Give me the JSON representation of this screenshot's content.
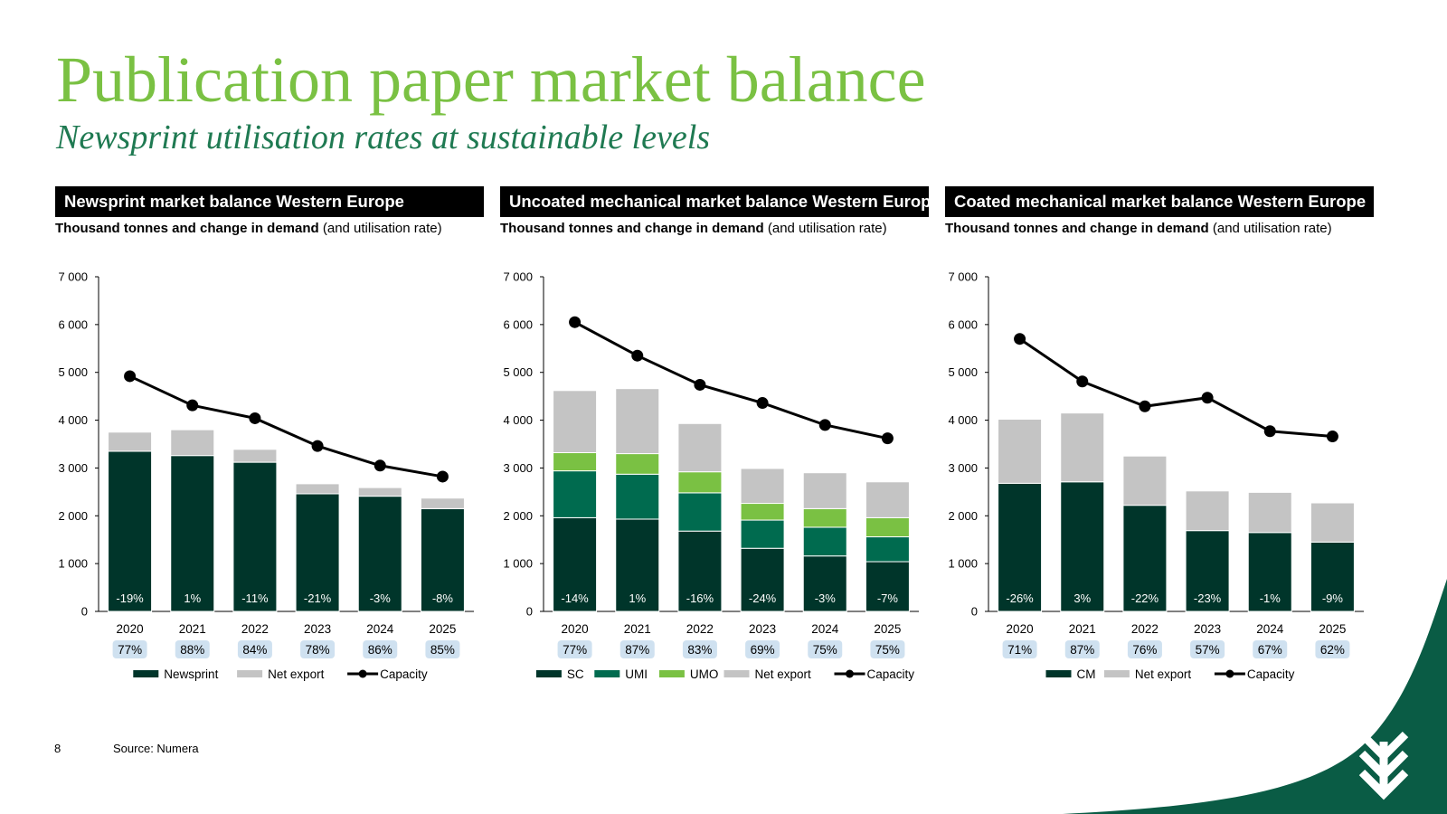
{
  "page": {
    "title": "Publication paper market balance",
    "subtitle": "Newsprint utilisation rates at sustainable levels",
    "page_number": "8",
    "source": "Source: Numera"
  },
  "colors": {
    "title": "#7ac143",
    "subtitle": "#1f7a52",
    "dark_green": "#00352a",
    "mid_green": "#006b4f",
    "light_green": "#7ac143",
    "grey": "#c4c4c4",
    "pill": "#cfe1f0",
    "brand_wave": "#0a5c45"
  },
  "chart_data": [
    {
      "type": "bar",
      "stacked": true,
      "title": "Newsprint market balance Western Europe",
      "subtitle_bold": "Thousand tonnes and change in demand",
      "subtitle_normal": "(and utilisation rate)",
      "categories": [
        "2020",
        "2021",
        "2022",
        "2023",
        "2024",
        "2025"
      ],
      "ylim": [
        0,
        7000
      ],
      "yticks": [
        0,
        1000,
        2000,
        3000,
        4000,
        5000,
        6000,
        7000
      ],
      "ytick_labels": [
        "0",
        "1 000",
        "2 000",
        "3 000",
        "4 000",
        "5 000",
        "6 000",
        "7 000"
      ],
      "series": [
        {
          "name": "Newsprint",
          "color": "#00352a",
          "values": [
            3350,
            3260,
            3120,
            2460,
            2410,
            2150
          ]
        },
        {
          "name": "Net export",
          "color": "#c4c4c4",
          "values": [
            400,
            540,
            270,
            210,
            180,
            220
          ]
        }
      ],
      "line": {
        "name": "Capacity",
        "values": [
          4920,
          4310,
          4040,
          3460,
          3050,
          2820
        ]
      },
      "bar_labels": [
        "-19%",
        "1%",
        "-11%",
        "-21%",
        "-3%",
        "-8%"
      ],
      "utilisation": [
        "77%",
        "88%",
        "84%",
        "78%",
        "86%",
        "85%"
      ],
      "legend": [
        "Newsprint",
        "Net export",
        "Capacity"
      ]
    },
    {
      "type": "bar",
      "stacked": true,
      "title": "Uncoated mechanical market balance Western Europe",
      "subtitle_bold": "Thousand tonnes and change in demand",
      "subtitle_normal": "(and utilisation rate)",
      "categories": [
        "2020",
        "2021",
        "2022",
        "2023",
        "2024",
        "2025"
      ],
      "ylim": [
        0,
        7000
      ],
      "yticks": [
        0,
        1000,
        2000,
        3000,
        4000,
        5000,
        6000,
        7000
      ],
      "ytick_labels": [
        "0",
        "1 000",
        "2 000",
        "3 000",
        "4 000",
        "5 000",
        "6 000",
        "7 000"
      ],
      "series": [
        {
          "name": "SC",
          "color": "#00352a",
          "values": [
            1960,
            1930,
            1680,
            1320,
            1160,
            1040
          ]
        },
        {
          "name": "UMI",
          "color": "#006b4f",
          "values": [
            980,
            940,
            800,
            590,
            600,
            520
          ]
        },
        {
          "name": "UMO",
          "color": "#7ac143",
          "values": [
            380,
            430,
            440,
            350,
            390,
            400
          ]
        },
        {
          "name": "Net export",
          "color": "#c4c4c4",
          "values": [
            1300,
            1360,
            1010,
            730,
            750,
            750
          ]
        }
      ],
      "line": {
        "name": "Capacity",
        "values": [
          6050,
          5350,
          4740,
          4360,
          3900,
          3620
        ]
      },
      "bar_labels": [
        "-14%",
        "1%",
        "-16%",
        "-24%",
        "-3%",
        "-7%"
      ],
      "utilisation": [
        "77%",
        "87%",
        "83%",
        "69%",
        "75%",
        "75%"
      ],
      "legend": [
        "SC",
        "UMI",
        "UMO",
        "Net export",
        "Capacity"
      ]
    },
    {
      "type": "bar",
      "stacked": true,
      "title": "Coated mechanical market balance Western Europe",
      "subtitle_bold": "Thousand tonnes and change in demand",
      "subtitle_normal": "(and utilisation rate)",
      "categories": [
        "2020",
        "2021",
        "2022",
        "2023",
        "2024",
        "2025"
      ],
      "ylim": [
        0,
        7000
      ],
      "yticks": [
        0,
        1000,
        2000,
        3000,
        4000,
        5000,
        6000,
        7000
      ],
      "ytick_labels": [
        "0",
        "1 000",
        "2 000",
        "3 000",
        "4 000",
        "5 000",
        "6 000",
        "7 000"
      ],
      "series": [
        {
          "name": "CM",
          "color": "#00352a",
          "values": [
            2680,
            2710,
            2220,
            1690,
            1650,
            1450
          ]
        },
        {
          "name": "Net export",
          "color": "#c4c4c4",
          "values": [
            1340,
            1440,
            1030,
            830,
            840,
            820
          ]
        }
      ],
      "line": {
        "name": "Capacity",
        "values": [
          5700,
          4810,
          4290,
          4470,
          3770,
          3660
        ]
      },
      "bar_labels": [
        "-26%",
        "3%",
        "-22%",
        "-23%",
        "-1%",
        "-9%"
      ],
      "utilisation": [
        "71%",
        "87%",
        "76%",
        "57%",
        "67%",
        "62%"
      ],
      "legend": [
        "CM",
        "Net export",
        "Capacity"
      ]
    }
  ]
}
